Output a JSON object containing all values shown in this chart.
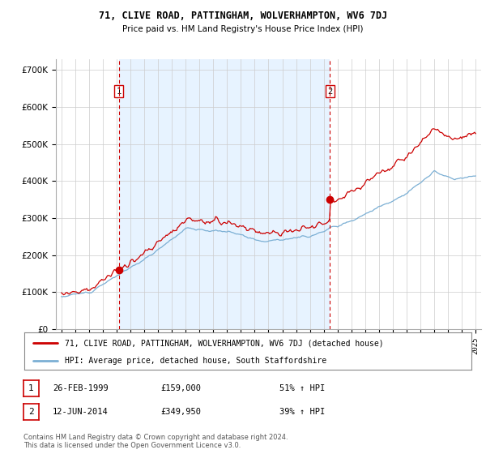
{
  "title1": "71, CLIVE ROAD, PATTINGHAM, WOLVERHAMPTON, WV6 7DJ",
  "title2": "Price paid vs. HM Land Registry's House Price Index (HPI)",
  "legend_label_red": "71, CLIVE ROAD, PATTINGHAM, WOLVERHAMPTON, WV6 7DJ (detached house)",
  "legend_label_blue": "HPI: Average price, detached house, South Staffordshire",
  "annotation1_date": "26-FEB-1999",
  "annotation1_price": "£159,000",
  "annotation1_hpi": "51% ↑ HPI",
  "annotation2_date": "12-JUN-2014",
  "annotation2_price": "£349,950",
  "annotation2_hpi": "39% ↑ HPI",
  "footer": "Contains HM Land Registry data © Crown copyright and database right 2024.\nThis data is licensed under the Open Government Licence v3.0.",
  "sale1_year": 1999.15,
  "sale1_price": 159000,
  "sale2_year": 2014.45,
  "sale2_price": 349950,
  "ylim_min": 0,
  "ylim_max": 730000,
  "yticks": [
    0,
    100000,
    200000,
    300000,
    400000,
    500000,
    600000,
    700000
  ],
  "ytick_labels": [
    "£0",
    "£100K",
    "£200K",
    "£300K",
    "£400K",
    "£500K",
    "£600K",
    "£700K"
  ],
  "color_red": "#cc0000",
  "color_blue": "#7bafd4",
  "color_vline": "#cc0000",
  "shade_color": "#ddeeff",
  "bg_color": "#ffffff",
  "grid_color": "#cccccc",
  "xlim_min": 1994.6,
  "xlim_max": 2025.4
}
